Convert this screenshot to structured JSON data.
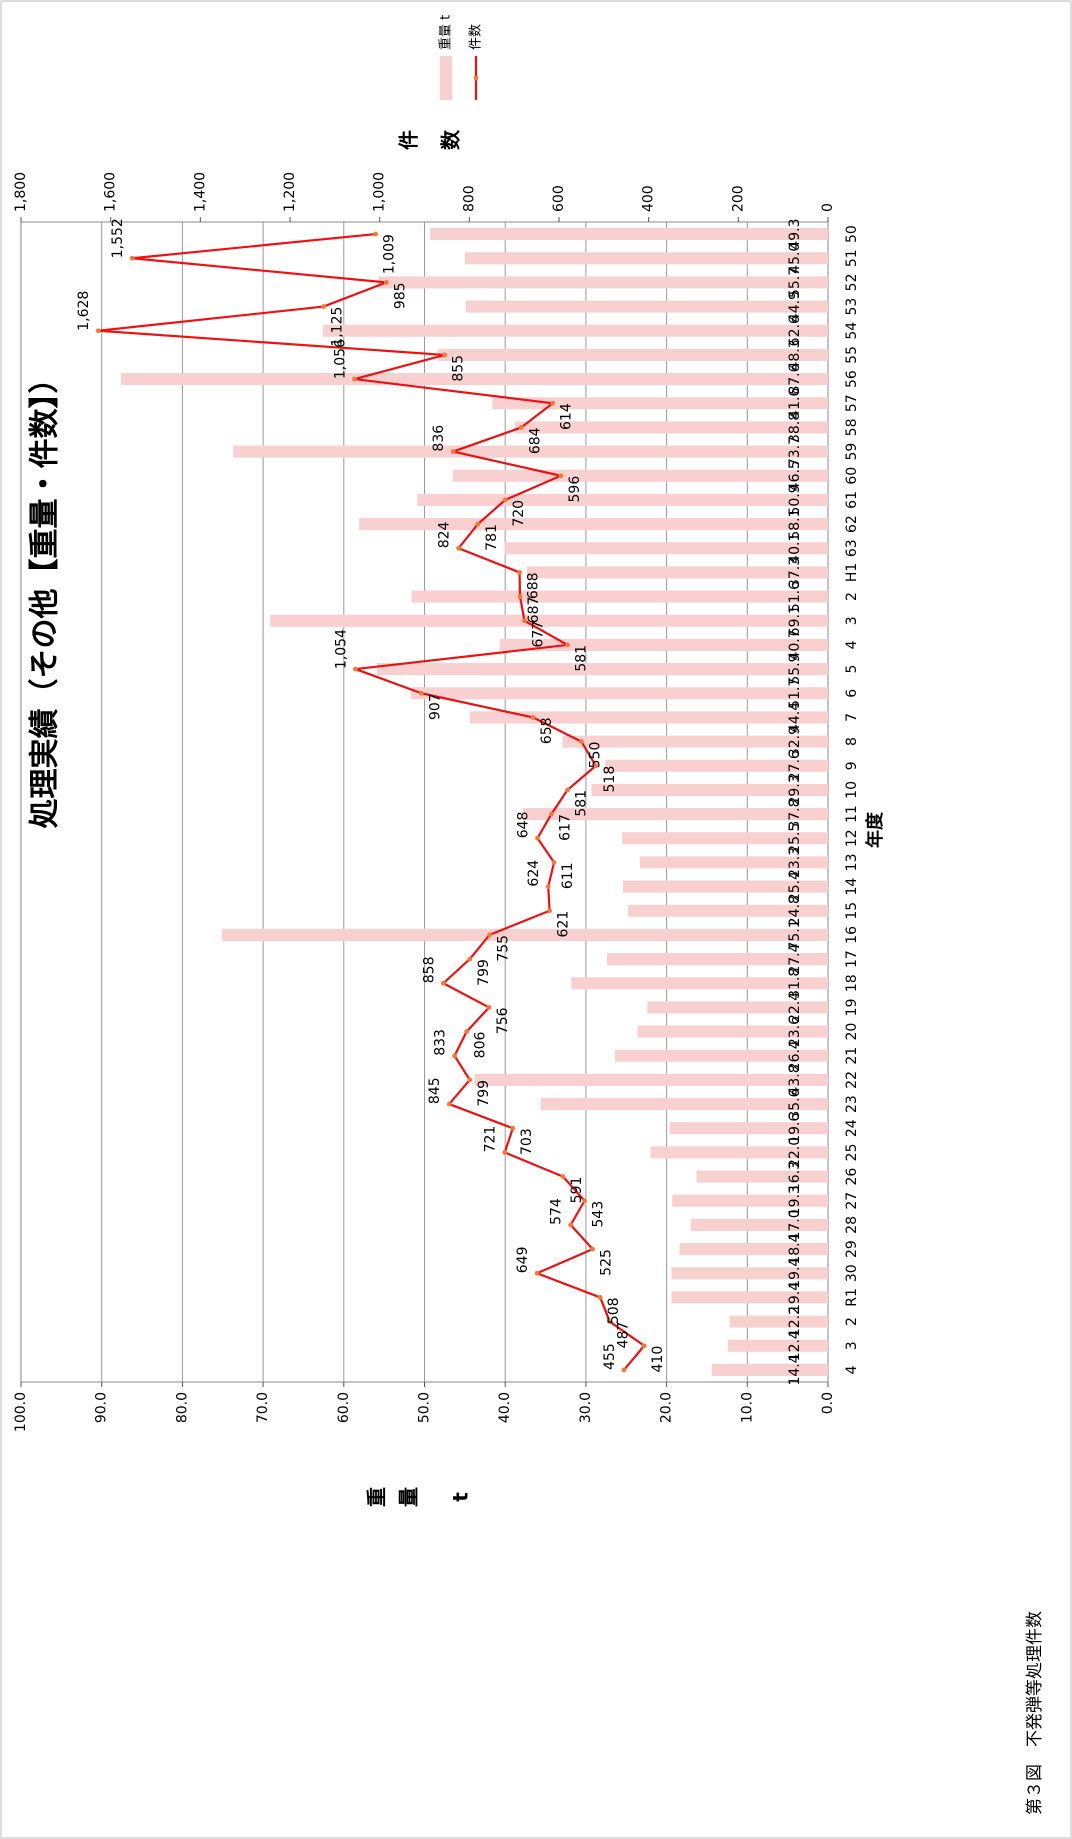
{
  "caption": "第３図　不発弾等処理件数",
  "chart_data": {
    "type": "bar+line",
    "title": "処理実績（その他【重量・件数】）",
    "xlabel": "年度",
    "categories": [
      "50",
      "51",
      "52",
      "53",
      "54",
      "55",
      "56",
      "57",
      "58",
      "59",
      "60",
      "61",
      "62",
      "63",
      "H1",
      "2",
      "3",
      "4",
      "5",
      "6",
      "7",
      "8",
      "9",
      "10",
      "11",
      "12",
      "13",
      "14",
      "15",
      "16",
      "17",
      "18",
      "19",
      "20",
      "21",
      "22",
      "23",
      "24",
      "25",
      "26",
      "27",
      "28",
      "29",
      "30",
      "R1",
      "2",
      "3",
      "4"
    ],
    "weight": {
      "name": "重量 t",
      "axis_label": "重量 t",
      "axis_label_parts": [
        "重",
        "量",
        "t"
      ],
      "range": [
        0,
        100
      ],
      "ticks": [
        "0.0",
        "10.0",
        "20.0",
        "30.0",
        "40.0",
        "50.0",
        "60.0",
        "70.0",
        "80.0",
        "90.0",
        "100.0"
      ],
      "values": [
        49.3,
        45.0,
        55.7,
        44.9,
        62.6,
        48.3,
        87.6,
        41.6,
        38.8,
        73.7,
        46.5,
        50.9,
        58.1,
        40.1,
        37.3,
        51.6,
        69.1,
        40.7,
        55.9,
        51.7,
        44.4,
        32.9,
        27.6,
        29.3,
        37.8,
        25.5,
        23.3,
        25.4,
        24.8,
        75.1,
        27.4,
        31.8,
        22.4,
        23.6,
        26.4,
        43.8,
        35.6,
        19.6,
        22.0,
        16.3,
        19.3,
        17.0,
        18.4,
        19.4,
        19.4,
        12.2,
        12.4,
        14.4
      ],
      "labels": [
        "49.3",
        "45.0",
        "55.7",
        "44.9",
        "62.6",
        "48.3",
        "87.6",
        "41.6",
        "38.8",
        "73.7",
        "46.5",
        "50.9",
        "58.1",
        "40.1",
        "37.3",
        "51.6",
        "69.1",
        "40.7",
        "55.9",
        "51.7",
        "44.4",
        "32.9",
        "27.6",
        "29.3",
        "37.8",
        "25.5",
        "23.3",
        "25.4",
        "24.8",
        "75.1",
        "27.4",
        "31.8",
        "22.4",
        "23.6",
        "26.4",
        "43.8",
        "35.6",
        "19.6",
        "22.0",
        "16.3",
        "19.3",
        "17.0",
        "18.4",
        "19.4",
        "19.4",
        "12.2",
        "12.4",
        "14.4"
      ],
      "color": "#f8d0d0"
    },
    "count": {
      "name": "件数",
      "axis_label": "件数",
      "axis_label_parts": [
        "件",
        "数"
      ],
      "range": [
        0,
        1800
      ],
      "ticks": [
        "0",
        "200",
        "400",
        "600",
        "800",
        "1,000",
        "1,200",
        "1,400",
        "1,600",
        "1,800"
      ],
      "values": [
        1009,
        1552,
        985,
        1125,
        1628,
        855,
        1056,
        614,
        684,
        836,
        596,
        720,
        781,
        824,
        688,
        687,
        677,
        581,
        1054,
        907,
        658,
        550,
        518,
        581,
        617,
        648,
        611,
        624,
        621,
        755,
        799,
        858,
        756,
        806,
        833,
        799,
        845,
        703,
        721,
        591,
        543,
        574,
        525,
        649,
        508,
        487,
        410,
        455
      ],
      "labels": [
        "1,009",
        "1,552",
        "985",
        "1,125",
        "1,628",
        "855",
        "1,056",
        "614",
        "684",
        "836",
        "596",
        "720",
        "781",
        "824",
        "688",
        "687",
        "677",
        "581",
        "1,054",
        "907",
        "658",
        "550",
        "518",
        "581",
        "617",
        "648",
        "611",
        "624",
        "621",
        "755",
        "799",
        "858",
        "756",
        "806",
        "833",
        "799",
        "845",
        "703",
        "721",
        "591",
        "543",
        "574",
        "525",
        "649",
        "508",
        "487",
        "410",
        "455"
      ],
      "color": "#ee1111"
    },
    "grid": true,
    "legend_position": "top-right"
  }
}
